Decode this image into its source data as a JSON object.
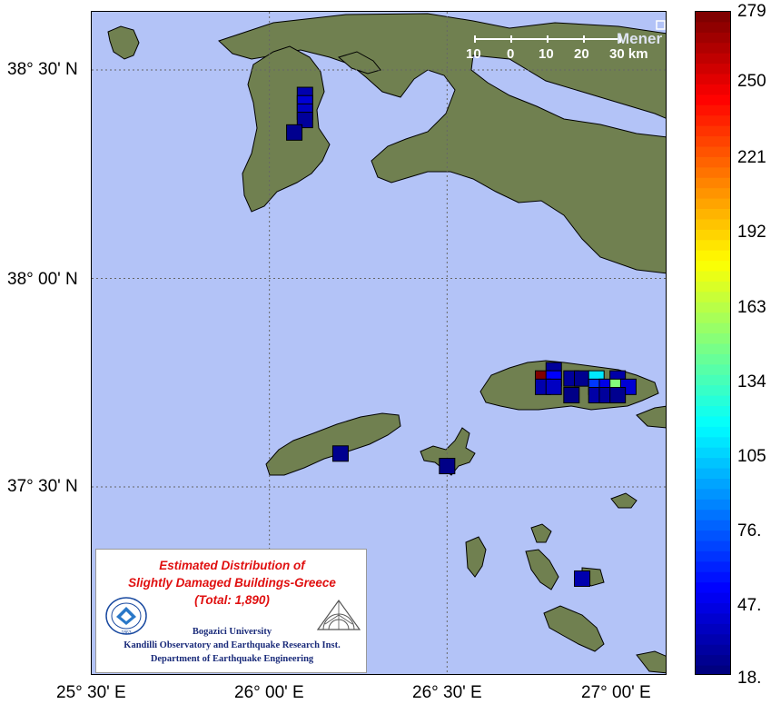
{
  "map": {
    "lat_labels": [
      "38° 30' N",
      "38° 00' N",
      "37° 30' N"
    ],
    "lon_labels": [
      "25° 30' E",
      "26° 00' E",
      "26° 30' E",
      "27° 00' E"
    ],
    "colors": {
      "sea": "#b3c3f7",
      "land": "#708050",
      "grid": "#666666"
    }
  },
  "scale_bar": {
    "ticks": [
      "10",
      "0",
      "10",
      "20",
      "30 km"
    ],
    "place_label": "Mener"
  },
  "colorbar": {
    "ticks": [
      "279",
      "250",
      "221",
      "192",
      "163",
      "134",
      "105",
      "76.",
      "47.",
      "18."
    ],
    "min": 18,
    "max": 279
  },
  "legend": {
    "title_lines": [
      "Estimated Distribution of",
      "Slightly Damaged Buildings-Greece",
      "(Total: 1,890)"
    ],
    "institution_lines": [
      "Bogazici University",
      "Kandilli Observatory and Earthquake Research Inst.",
      "Department of Earthquake Engineering"
    ],
    "logo_left_text": "BOĞAZİÇİ ÜNİVERSİTESİ",
    "logo_left_year": "1863"
  },
  "damage_cells": [
    {
      "lat": 38.44,
      "lon": 26.1,
      "value": 30
    },
    {
      "lat": 38.42,
      "lon": 26.1,
      "value": 40
    },
    {
      "lat": 38.4,
      "lon": 26.1,
      "value": 35
    },
    {
      "lat": 38.38,
      "lon": 26.1,
      "value": 25
    },
    {
      "lat": 38.35,
      "lon": 26.07,
      "value": 22
    },
    {
      "lat": 37.58,
      "lon": 26.2,
      "value": 22
    },
    {
      "lat": 37.55,
      "lon": 26.5,
      "value": 20
    },
    {
      "lat": 37.78,
      "lon": 26.8,
      "value": 25
    },
    {
      "lat": 37.76,
      "lon": 26.77,
      "value": 279
    },
    {
      "lat": 37.76,
      "lon": 26.8,
      "value": 50
    },
    {
      "lat": 37.76,
      "lon": 26.85,
      "value": 25
    },
    {
      "lat": 37.76,
      "lon": 26.88,
      "value": 22
    },
    {
      "lat": 37.76,
      "lon": 26.92,
      "value": 110
    },
    {
      "lat": 37.76,
      "lon": 26.98,
      "value": 28
    },
    {
      "lat": 37.74,
      "lon": 26.77,
      "value": 30
    },
    {
      "lat": 37.74,
      "lon": 26.8,
      "value": 35
    },
    {
      "lat": 37.74,
      "lon": 26.92,
      "value": 65
    },
    {
      "lat": 37.74,
      "lon": 26.95,
      "value": 45
    },
    {
      "lat": 37.74,
      "lon": 26.98,
      "value": 150
    },
    {
      "lat": 37.74,
      "lon": 27.01,
      "value": 40
    },
    {
      "lat": 37.72,
      "lon": 26.85,
      "value": 20
    },
    {
      "lat": 37.72,
      "lon": 26.92,
      "value": 28
    },
    {
      "lat": 37.72,
      "lon": 26.95,
      "value": 25
    },
    {
      "lat": 37.72,
      "lon": 26.98,
      "value": 22
    },
    {
      "lat": 37.28,
      "lon": 26.88,
      "value": 30
    }
  ]
}
